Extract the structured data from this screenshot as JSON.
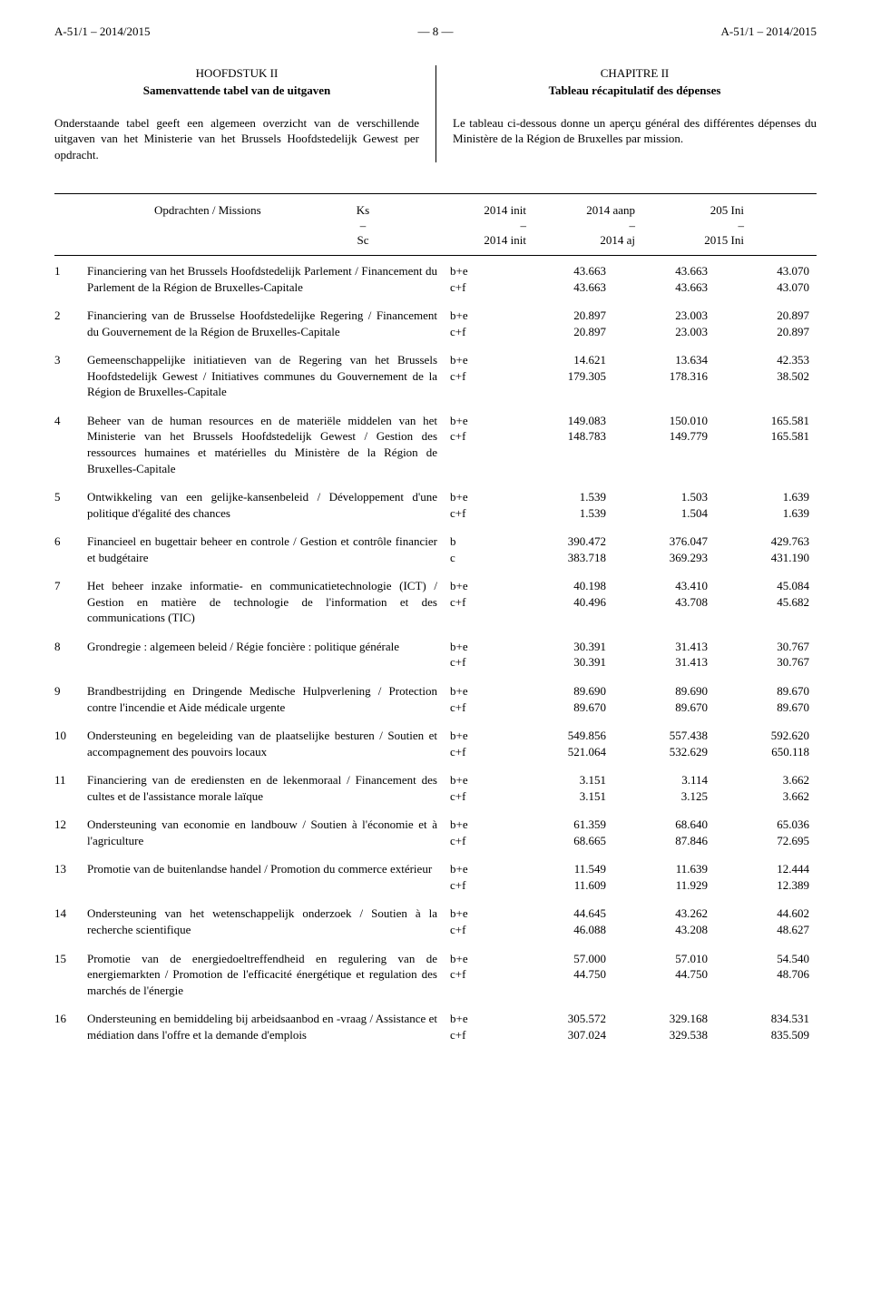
{
  "header": {
    "left": "A-51/1 – 2014/2015",
    "center": "— 8 —",
    "right": "A-51/1 – 2014/2015"
  },
  "left_col": {
    "chapter": "HOOFDSTUK II",
    "title": "Samenvattende tabel van de uitgaven",
    "intro": "Onderstaande tabel geeft een algemeen overzicht van de verschillende uitgaven van het Ministerie van het Brussels Hoofdstedelijk Gewest per opdracht."
  },
  "right_col": {
    "chapter": "CHAPITRE II",
    "title": "Tableau récapitulatif des dépenses",
    "intro": "Le tableau ci-dessous donne un aperçu général des différentes dépenses du Ministère de la Région de Bruxelles par mission."
  },
  "table": {
    "header": {
      "missions_top": "Opdrachten / Missions",
      "ks_top": "Ks",
      "ks_mid": "–",
      "ks_bot": "Sc",
      "c1_top": "2014 init",
      "c1_mid": "–",
      "c1_bot": "2014 init",
      "c2_top": "2014 aanp",
      "c2_mid": "–",
      "c2_bot": "2014 aj",
      "c3_top": "205 Ini",
      "c3_mid": "–",
      "c3_bot": "2015 Ini"
    },
    "rows": [
      {
        "idx": "1",
        "desc": "Financiering van het Brussels Hoofdstedelijk Parlement / Financement du Parlement de la Région de Bruxelles-Capitale",
        "ks": [
          "b+e",
          "c+f"
        ],
        "v1": [
          "43.663",
          "43.663"
        ],
        "v2": [
          "43.663",
          "43.663"
        ],
        "v3": [
          "43.070",
          "43.070"
        ]
      },
      {
        "idx": "2",
        "desc": "Financiering van de Brusselse Hoofdstedelijke Regering / Financement du Gouvernement de la Région de Bruxelles-Capitale",
        "ks": [
          "b+e",
          "c+f"
        ],
        "v1": [
          "20.897",
          "20.897"
        ],
        "v2": [
          "23.003",
          "23.003"
        ],
        "v3": [
          "20.897",
          "20.897"
        ]
      },
      {
        "idx": "3",
        "desc": "Gemeenschappelijke initiatieven van de Regering van het Brussels Hoofdstedelijk Gewest / Initiatives communes du Gouvernement de la Région de Bruxelles-Capitale",
        "ks": [
          "b+e",
          "c+f"
        ],
        "v1": [
          "14.621",
          "179.305"
        ],
        "v2": [
          "13.634",
          "178.316"
        ],
        "v3": [
          "42.353",
          "38.502"
        ]
      },
      {
        "idx": "4",
        "desc": "Beheer van de human resources en de materiële middelen van het Ministerie van het Brussels Hoofdstedelijk Gewest / Gestion des ressources humaines et matérielles du Ministère de la Région de Bruxelles-Capitale",
        "ks": [
          "b+e",
          "c+f"
        ],
        "v1": [
          "149.083",
          "148.783"
        ],
        "v2": [
          "150.010",
          "149.779"
        ],
        "v3": [
          "165.581",
          "165.581"
        ]
      },
      {
        "idx": "5",
        "desc": "Ontwikkeling van een gelijke-kansenbeleid / Développement d'une politique d'égalité des chances",
        "ks": [
          "b+e",
          "c+f"
        ],
        "v1": [
          "1.539",
          "1.539"
        ],
        "v2": [
          "1.503",
          "1.504"
        ],
        "v3": [
          "1.639",
          "1.639"
        ]
      },
      {
        "idx": "6",
        "desc": "Financieel en bugettair beheer en controle / Gestion et contrôle financier et budgétaire",
        "ks": [
          "b",
          "c"
        ],
        "v1": [
          "390.472",
          "383.718"
        ],
        "v2": [
          "376.047",
          "369.293"
        ],
        "v3": [
          "429.763",
          "431.190"
        ]
      },
      {
        "idx": "7",
        "desc": "Het beheer inzake informatie- en communicatietechnologie (ICT) / Gestion en matière de technologie de l'information et des communications (TIC)",
        "ks": [
          "b+e",
          "c+f"
        ],
        "v1": [
          "40.198",
          "40.496"
        ],
        "v2": [
          "43.410",
          "43.708"
        ],
        "v3": [
          "45.084",
          "45.682"
        ]
      },
      {
        "idx": "8",
        "desc": "Grondregie : algemeen beleid / Régie foncière : politique générale",
        "ks": [
          "b+e",
          "c+f"
        ],
        "v1": [
          "30.391",
          "30.391"
        ],
        "v2": [
          "31.413",
          "31.413"
        ],
        "v3": [
          "30.767",
          "30.767"
        ]
      },
      {
        "idx": "9",
        "desc": "Brandbestrijding en Dringende Medische Hulpverlening / Protection contre l'incendie et Aide médicale urgente",
        "ks": [
          "b+e",
          "c+f"
        ],
        "v1": [
          "89.690",
          "89.670"
        ],
        "v2": [
          "89.690",
          "89.670"
        ],
        "v3": [
          "89.670",
          "89.670"
        ]
      },
      {
        "idx": "10",
        "desc": "Ondersteuning en begeleiding van de plaatselijke besturen / Soutien et accompagnement des pouvoirs locaux",
        "ks": [
          "b+e",
          "c+f"
        ],
        "v1": [
          "549.856",
          "521.064"
        ],
        "v2": [
          "557.438",
          "532.629"
        ],
        "v3": [
          "592.620",
          "650.118"
        ]
      },
      {
        "idx": "11",
        "desc": "Financiering van de erediensten en de lekenmoraal / Financement des cultes et de l'assistance morale laïque",
        "ks": [
          "b+e",
          "c+f"
        ],
        "v1": [
          "3.151",
          "3.151"
        ],
        "v2": [
          "3.114",
          "3.125"
        ],
        "v3": [
          "3.662",
          "3.662"
        ]
      },
      {
        "idx": "12",
        "desc": "Ondersteuning van economie en landbouw / Soutien à l'économie et à l'agriculture",
        "ks": [
          "b+e",
          "c+f"
        ],
        "v1": [
          "61.359",
          "68.665"
        ],
        "v2": [
          "68.640",
          "87.846"
        ],
        "v3": [
          "65.036",
          "72.695"
        ]
      },
      {
        "idx": "13",
        "desc": "Promotie van de buitenlandse handel / Promotion du commerce extérieur",
        "ks": [
          "b+e",
          "c+f"
        ],
        "v1": [
          "11.549",
          "11.609"
        ],
        "v2": [
          "11.639",
          "11.929"
        ],
        "v3": [
          "12.444",
          "12.389"
        ]
      },
      {
        "idx": "14",
        "desc": "Ondersteuning van het wetenschappelijk onderzoek / Soutien à la recherche scientifique",
        "ks": [
          "b+e",
          "c+f"
        ],
        "v1": [
          "44.645",
          "46.088"
        ],
        "v2": [
          "43.262",
          "43.208"
        ],
        "v3": [
          "44.602",
          "48.627"
        ]
      },
      {
        "idx": "15",
        "desc": "Promotie van de energiedoeltreffendheid en regulering van de energiemarkten / Promotion de l'efficacité énergétique et regulation des marchés de l'énergie",
        "ks": [
          "b+e",
          "c+f"
        ],
        "v1": [
          "57.000",
          "44.750"
        ],
        "v2": [
          "57.010",
          "44.750"
        ],
        "v3": [
          "54.540",
          "48.706"
        ]
      },
      {
        "idx": "16",
        "desc": "Ondersteuning en bemiddeling bij arbeidsaanbod en -vraag / Assistance et médiation dans l'offre et la demande d'emplois",
        "ks": [
          "b+e",
          "c+f"
        ],
        "v1": [
          "305.572",
          "307.024"
        ],
        "v2": [
          "329.168",
          "329.538"
        ],
        "v3": [
          "834.531",
          "835.509"
        ]
      }
    ]
  }
}
